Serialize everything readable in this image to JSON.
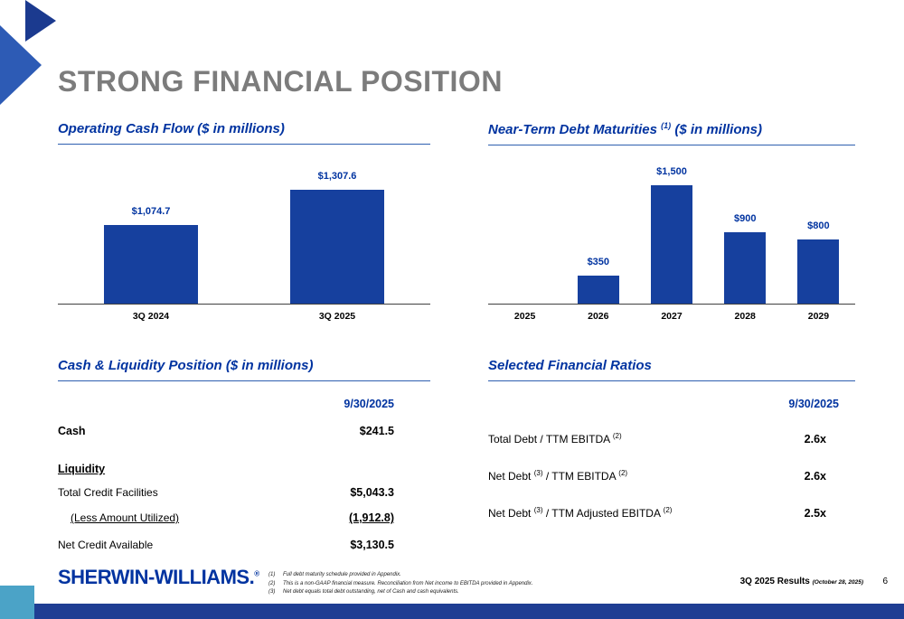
{
  "slide": {
    "title": "STRONG FINANCIAL POSITION",
    "page_number": "6",
    "results_label": "3Q 2025 Results",
    "results_date": "(October 28, 2025)"
  },
  "colors": {
    "bar_blue": "#16409e",
    "header_blue": "#0033a0",
    "title_gray": "#7c7c7c",
    "footer_bar_blue": "#1f3e93",
    "corner_teal": "#4ba3c7",
    "deco_dark_blue": "#1b3a8f",
    "deco_light_blue": "#2d5bb5"
  },
  "sections": {
    "cash_flow": {
      "title": "Operating Cash Flow ($ in millions)"
    },
    "debt_maturities": {
      "title_main": "Near-Term Debt Maturities ",
      "title_sup": "(1)",
      "title_suffix": " ($ in millions)"
    },
    "cash_liquidity": {
      "title": "Cash & Liquidity Position ($ in millions)"
    },
    "ratios": {
      "title": "Selected Financial Ratios"
    }
  },
  "chart_data": [
    {
      "type": "bar",
      "title": "Operating Cash Flow ($ in millions)",
      "categories": [
        "3Q 2024",
        "3Q 2025"
      ],
      "values": [
        1074.7,
        1307.6
      ],
      "data_labels": [
        "$1,074.7",
        "$1,307.6"
      ],
      "ylim": [
        550,
        1450
      ],
      "grid": false,
      "legend": "none",
      "bar_color": "#16409e"
    },
    {
      "type": "bar",
      "title": "Near-Term Debt Maturities (1) ($ in millions)",
      "categories": [
        "2025",
        "2026",
        "2027",
        "2028",
        "2029"
      ],
      "values": [
        0,
        350,
        1500,
        900,
        800
      ],
      "data_labels": [
        "",
        "$350",
        "$1,500",
        "$900",
        "$800"
      ],
      "ylim": [
        0,
        1700
      ],
      "grid": false,
      "legend": "none",
      "bar_color": "#16409e"
    }
  ],
  "cash_liquidity_table": {
    "column_header": "9/30/2025",
    "rows": [
      {
        "label": "Cash",
        "value": "$241.5"
      },
      {
        "label": "Liquidity",
        "value": ""
      },
      {
        "label": "Total Credit Facilities",
        "value": "$5,043.3"
      },
      {
        "label": "(Less Amount Utilized)",
        "value": "(1,912.8)"
      },
      {
        "label": "Net Credit Available",
        "value": "$3,130.5"
      }
    ]
  },
  "ratios_table": {
    "column_header": "9/30/2025",
    "rows": [
      {
        "parts": [
          "Total Debt / TTM EBITDA ",
          "(2)",
          "",
          ""
        ],
        "value": "2.6x"
      },
      {
        "parts": [
          "Net Debt ",
          "(3)",
          " / TTM EBITDA ",
          "(2)"
        ],
        "value": "2.6x"
      },
      {
        "parts": [
          "Net Debt ",
          "(3)",
          " / TTM Adjusted EBITDA ",
          "(2)"
        ],
        "value": "2.5x"
      }
    ]
  },
  "footer": {
    "logo_text": "SHERWIN-WILLIAMS.",
    "logo_reg": "®",
    "footnotes": [
      {
        "num": "(1)",
        "text": "Full debt maturity schedule provided in Appendix."
      },
      {
        "num": "(2)",
        "text": "This is a non-GAAP financial measure.  Reconciliation from Net income to EBITDA provided in Appendix."
      },
      {
        "num": "(3)",
        "text": "Net debt equals total debt outstanding, net of Cash and cash equivalents."
      }
    ]
  }
}
